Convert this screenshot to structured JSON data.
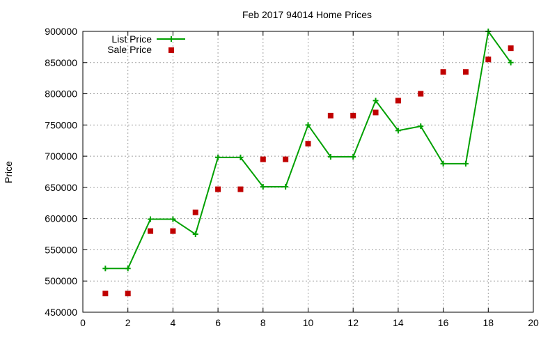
{
  "chart_data": {
    "type": "line",
    "title": "Feb 2017 94014 Home Prices",
    "xlabel": "",
    "ylabel": "Price",
    "xlim": [
      0,
      20
    ],
    "ylim": [
      450000,
      900000
    ],
    "x_ticks": [
      0,
      2,
      4,
      6,
      8,
      10,
      12,
      14,
      16,
      18,
      20
    ],
    "y_ticks": [
      450000,
      500000,
      550000,
      600000,
      650000,
      700000,
      750000,
      800000,
      850000,
      900000
    ],
    "grid": true,
    "legend_position": "top-left",
    "x": [
      1,
      2,
      3,
      4,
      5,
      6,
      7,
      8,
      9,
      10,
      11,
      12,
      13,
      14,
      15,
      16,
      17,
      18,
      19
    ],
    "series": [
      {
        "name": "List Price",
        "style": "linespoints",
        "color": "#00a000",
        "values": [
          520000,
          520000,
          599000,
          599000,
          575000,
          698000,
          698000,
          651000,
          651000,
          750000,
          699000,
          699000,
          789000,
          741000,
          748000,
          688000,
          688000,
          900000,
          850000
        ]
      },
      {
        "name": "Sale Price",
        "style": "points",
        "color": "#c00000",
        "values": [
          480000,
          480000,
          580000,
          580000,
          610000,
          647000,
          647000,
          695000,
          695000,
          720000,
          765000,
          765000,
          770000,
          789000,
          800000,
          835000,
          835000,
          855000,
          873000
        ]
      }
    ]
  }
}
